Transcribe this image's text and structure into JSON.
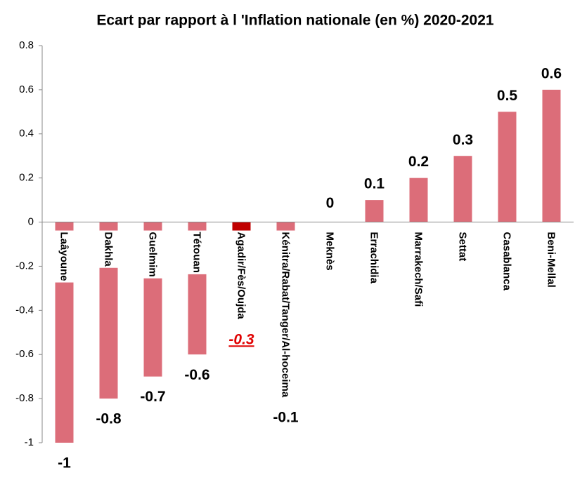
{
  "chart_data": {
    "type": "bar",
    "title": "Ecart par rapport à l 'Inflation nationale  (en %) 2020-2021",
    "categories": [
      "Laâyoune",
      "Dakhla",
      "Guelmim",
      "Tétouan",
      "Agadir/Fès/Oujda",
      "Kénitra/Rabat/Tanger/Al-hoceima",
      "Meknès",
      "Errachidia",
      "Marrakech/Safi",
      "Settat",
      "Casablanca",
      "Beni-Mellal"
    ],
    "values": [
      -1,
      -0.8,
      -0.7,
      -0.6,
      -0.3,
      -0.1,
      0,
      0.1,
      0.2,
      0.3,
      0.5,
      0.6
    ],
    "colors": [
      "#dc6d79",
      "#dc6d79",
      "#dc6d79",
      "#dc6d79",
      "#c00000",
      "#dc6d79",
      "#dc6d79",
      "#dc6d79",
      "#dc6d79",
      "#dc6d79",
      "#dc6d79",
      "#dc6d79"
    ],
    "highlight_color": "#c00000",
    "ylim": [
      -1,
      0.8
    ],
    "yticks": [
      -1,
      -0.8,
      -0.6,
      -0.4,
      -0.2,
      0,
      0.2,
      0.4,
      0.6,
      0.8
    ],
    "grid": false
  }
}
